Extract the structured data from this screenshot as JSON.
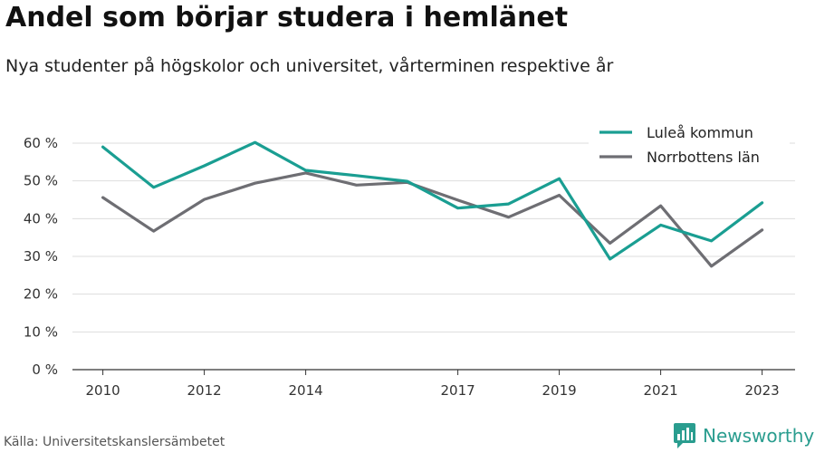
{
  "title": "Andel som börjar studera i hemlänet",
  "subtitle": "Nya studenter på högskolor och universitet, vårterminen respektive år",
  "source": "Källa: Universitetskanslersämbetet",
  "brand": "Newsworthy",
  "chart_data": {
    "type": "line",
    "x": [
      2010,
      2011,
      2012,
      2013,
      2014,
      2015,
      2016,
      2017,
      2018,
      2019,
      2020,
      2021,
      2022,
      2023
    ],
    "x_tick_labels": [
      "2010",
      "2012",
      "2014",
      "2017",
      "2019",
      "2021",
      "2023"
    ],
    "x_ticks": [
      2010,
      2012,
      2014,
      2017,
      2019,
      2021,
      2023
    ],
    "y_ticks": [
      0,
      10,
      20,
      30,
      40,
      50,
      60
    ],
    "y_tick_labels": [
      "0 %",
      "10 %",
      "20 %",
      "30 %",
      "40 %",
      "50 %",
      "60 %"
    ],
    "ylim": [
      0,
      60
    ],
    "xlim": [
      2009.4,
      2023.65
    ],
    "grid": "horizontal",
    "legend_position": "top-right",
    "series": [
      {
        "name": "Luleå kommun",
        "color": "#1a9e92",
        "values": [
          59.0,
          48.3,
          54.0,
          60.2,
          52.8,
          51.4,
          49.9,
          42.8,
          43.9,
          50.6,
          29.3,
          38.3,
          34.1,
          44.2
        ]
      },
      {
        "name": "Norrbottens län",
        "color": "#6e6e73",
        "values": [
          45.6,
          36.7,
          45.1,
          49.4,
          52.1,
          48.9,
          49.6,
          44.9,
          40.4,
          46.2,
          33.5,
          43.4,
          27.4,
          37.0
        ]
      }
    ]
  }
}
